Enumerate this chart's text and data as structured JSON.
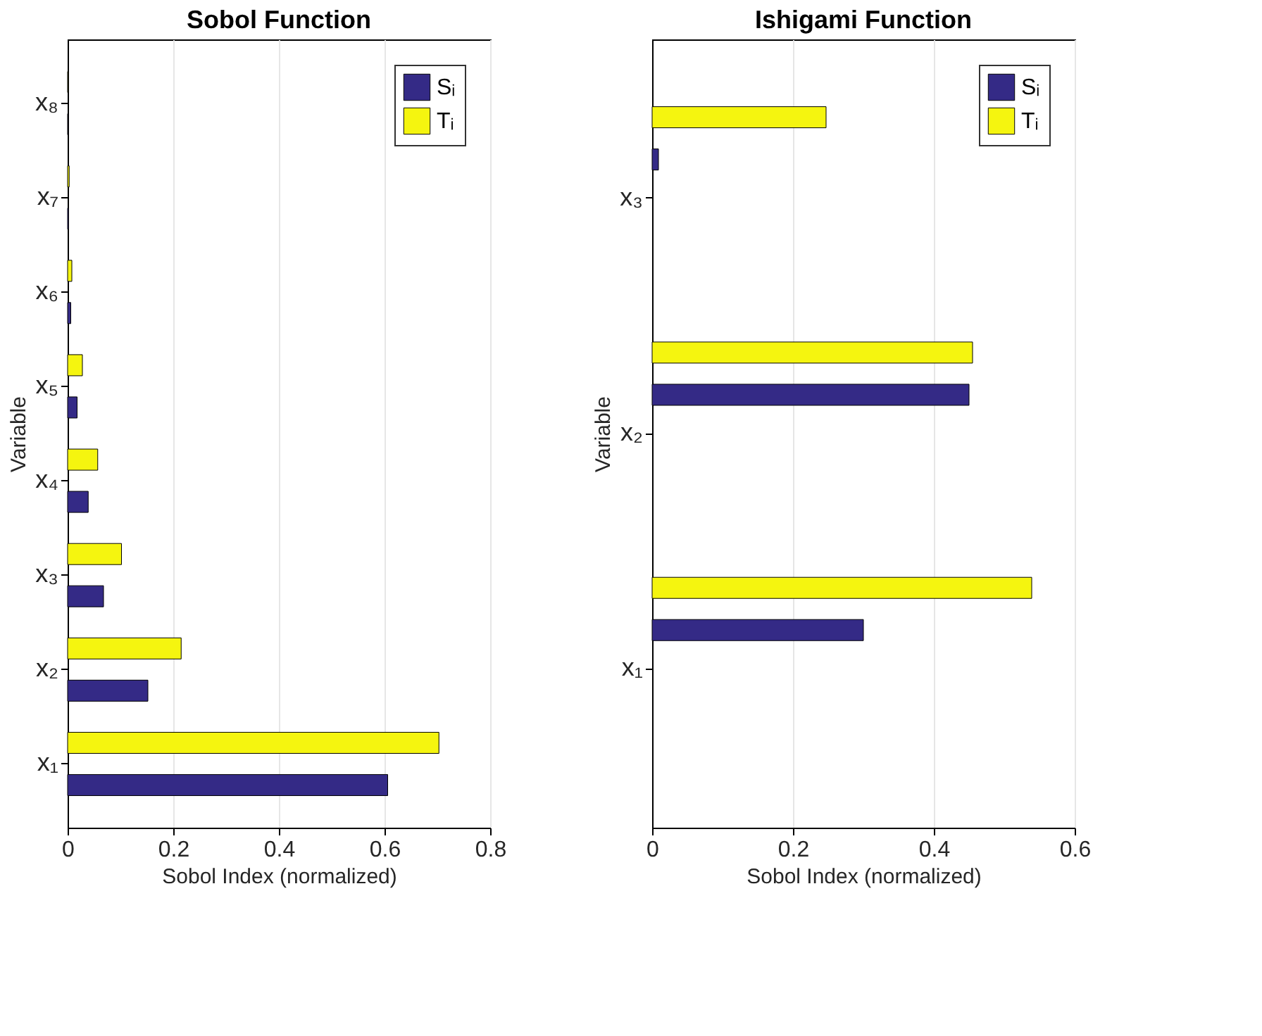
{
  "chart_data": [
    {
      "type": "bar",
      "orientation": "horizontal",
      "title": "Sobol Function",
      "xlabel": "Sobol Index (normalized)",
      "ylabel": "Variable",
      "categories": [
        "x₈",
        "x₇",
        "x₆",
        "x₅",
        "x₄",
        "x₃",
        "x₂",
        "x₁"
      ],
      "series": [
        {
          "name": "Sᵢ",
          "color": "#342a86",
          "values": [
            0.001,
            0.002,
            0.006,
            0.018,
            0.039,
            0.068,
            0.152,
            0.606
          ]
        },
        {
          "name": "Tᵢ",
          "color": "#f5f50f",
          "values": [
            0.001,
            0.003,
            0.008,
            0.028,
            0.057,
            0.102,
            0.215,
            0.703
          ]
        }
      ],
      "xlim": [
        0,
        0.8
      ],
      "xticks": [
        0,
        0.2,
        0.4,
        0.6,
        0.8
      ],
      "grid": "x",
      "legend": "top right"
    },
    {
      "type": "bar",
      "orientation": "horizontal",
      "title": "Ishigami Function",
      "xlabel": "Sobol Index (normalized)",
      "ylabel": "Variable",
      "categories": [
        "x₃",
        "x₂",
        "x₁"
      ],
      "series": [
        {
          "name": "Sᵢ",
          "color": "#342a86",
          "values": [
            0.009,
            0.45,
            0.3
          ]
        },
        {
          "name": "Tᵢ",
          "color": "#f5f50f",
          "values": [
            0.247,
            0.455,
            0.539
          ]
        }
      ],
      "xlim": [
        0,
        0.6
      ],
      "xticks": [
        0,
        0.2,
        0.4,
        0.6
      ],
      "grid": "x",
      "legend": "top right"
    }
  ]
}
